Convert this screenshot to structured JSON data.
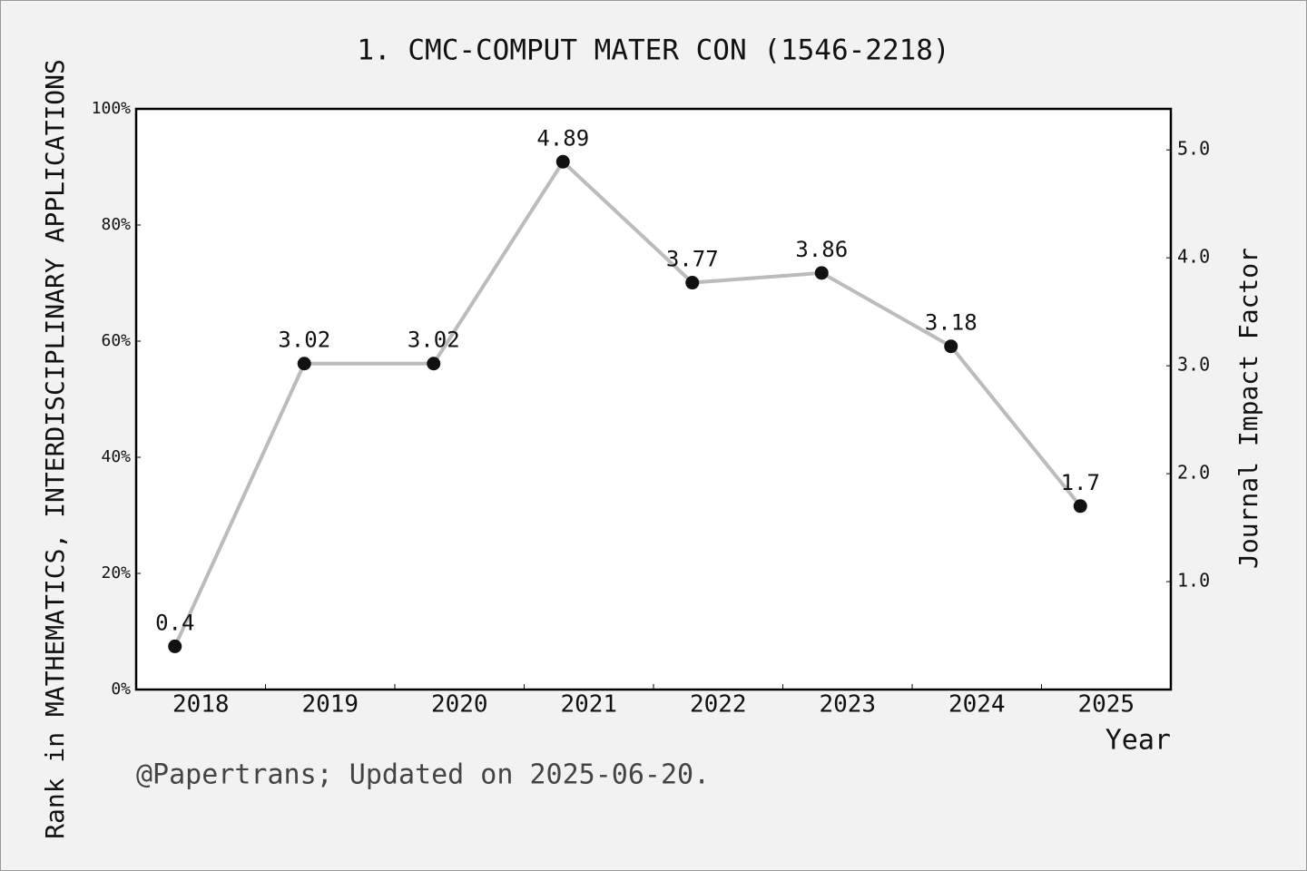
{
  "chart_data": {
    "type": "line",
    "title": "1. CMC-COMPUT MATER CON (1546-2218)",
    "x_label": "Year",
    "y_label": "Rank in MATHEMATICS,  INTERDISCIPLINARY APPLICATIONS",
    "y2_label": "Journal Impact Factor",
    "footnote": "@Papertrans; Updated on 2025-06-20.",
    "categories": [
      "2018",
      "2019",
      "2020",
      "2021",
      "2022",
      "2023",
      "2024",
      "2025"
    ],
    "ylim": [
      0,
      100
    ],
    "yticks": [
      {
        "value": 0,
        "label": "0%"
      },
      {
        "value": 20,
        "label": "20%"
      },
      {
        "value": 40,
        "label": "40%"
      },
      {
        "value": 60,
        "label": "60%"
      },
      {
        "value": 80,
        "label": "80%"
      },
      {
        "value": 100,
        "label": "100%"
      }
    ],
    "y2lim": [
      0,
      5.38
    ],
    "y2ticks": [
      {
        "value": 1,
        "label": "1.0"
      },
      {
        "value": 2,
        "label": "2.0"
      },
      {
        "value": 3,
        "label": "3.0"
      },
      {
        "value": 4,
        "label": "4.0"
      },
      {
        "value": 5,
        "label": "5.0"
      }
    ],
    "series": [
      {
        "color": "#bbbbbb",
        "marker_color": "#111111",
        "axis": "y2",
        "values": [
          0.4,
          3.02,
          3.02,
          4.89,
          3.77,
          3.86,
          3.18,
          1.7
        ]
      }
    ]
  }
}
